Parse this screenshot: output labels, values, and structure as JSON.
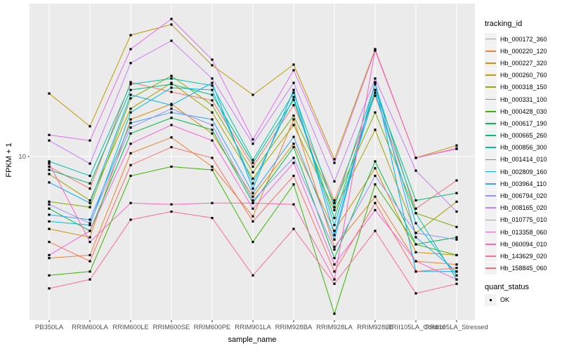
{
  "chart_data": {
    "type": "line",
    "title": "",
    "xlabel": "sample_name",
    "ylabel": "FPKM + 1",
    "y_scale": "log10",
    "ylim": [
      0.9,
      110
    ],
    "grid": "on",
    "legend_position": "right",
    "legend_title": "tracking_id",
    "y_ticks": [
      {
        "value": 10,
        "label": "10"
      }
    ],
    "categories": [
      "PB350LA",
      "RRIM600LA",
      "RRIM600LE",
      "RRIM600SE",
      "RRIM600PE",
      "RRIM901LA",
      "RRIM928BA",
      "RRIM928LA",
      "RRIM928LE",
      "RRII105LA_Control",
      "RRII105LA_Stressed"
    ],
    "series": [
      {
        "name": "Hb_000172_360",
        "color": "#F8766D",
        "values": [
          8.6,
          6.2,
          30.3,
          26.2,
          23.1,
          8.6,
          21.5,
          5.2,
          24.8,
          4.6,
          7.0
        ]
      },
      {
        "name": "Hb_000220_120",
        "color": "#EA8331",
        "values": [
          2.2,
          2.3,
          10.5,
          13.3,
          8.6,
          4.1,
          17.4,
          2.6,
          5.5,
          2.1,
          2.0
        ]
      },
      {
        "name": "Hb_000227_320",
        "color": "#D89000",
        "values": [
          3.4,
          3.0,
          17.4,
          21.9,
          14.1,
          5.5,
          12.1,
          3.3,
          8.4,
          2.4,
          2.3
        ]
      },
      {
        "name": "Hb_000260_760",
        "color": "#C09B00",
        "values": [
          25.6,
          15.7,
          61.1,
          71.6,
          39.0,
          25.1,
          39.4,
          9.6,
          49.6,
          9.8,
          11.8
        ]
      },
      {
        "name": "Hb_000318_150",
        "color": "#A3A500",
        "values": [
          7.7,
          5.2,
          20.4,
          30.0,
          19.3,
          7.2,
          16.0,
          4.5,
          14.9,
          3.2,
          5.1
        ]
      },
      {
        "name": "Hb_000331_100",
        "color": "#7CAE00",
        "values": [
          5.1,
          4.7,
          23.8,
          33.3,
          21.5,
          7.9,
          18.4,
          5.0,
          19.3,
          4.3,
          3.5
        ]
      },
      {
        "name": "Hb_000428_030",
        "color": "#39B600",
        "values": [
          1.7,
          1.8,
          7.5,
          8.6,
          8.2,
          2.8,
          6.6,
          0.96,
          6.6,
          2.7,
          2.3
        ]
      },
      {
        "name": "Hb_000617_190",
        "color": "#00BB4E",
        "values": [
          4.6,
          3.3,
          14.1,
          17.8,
          14.9,
          5.0,
          11.5,
          2.2,
          9.3,
          2.7,
          3.0
        ]
      },
      {
        "name": "Hb_000665_260",
        "color": "#00BF7D",
        "values": [
          8.2,
          6.7,
          27.0,
          29.4,
          25.1,
          9.1,
          23.3,
          4.0,
          27.0,
          5.2,
          5.8
        ]
      },
      {
        "name": "Hb_000856_300",
        "color": "#00C0AF",
        "values": [
          9.3,
          7.5,
          29.4,
          32.0,
          28.8,
          9.5,
          25.9,
          4.7,
          29.4,
          4.3,
          1.6
        ]
      },
      {
        "name": "Hb_001414_010",
        "color": "#00BCD8",
        "values": [
          3.8,
          3.6,
          19.3,
          27.9,
          27.0,
          6.7,
          24.3,
          3.6,
          25.9,
          3.7,
          1.7
        ]
      },
      {
        "name": "Hb_002809_160",
        "color": "#00B0F6",
        "values": [
          6.8,
          5.0,
          25.1,
          21.5,
          30.0,
          6.2,
          27.0,
          3.1,
          30.0,
          1.8,
          1.8
        ]
      },
      {
        "name": "Hb_003964_110",
        "color": "#35A2FF",
        "values": [
          4.2,
          3.9,
          16.5,
          19.3,
          17.4,
          5.8,
          13.4,
          2.9,
          30.3,
          3.0,
          1.8
        ]
      },
      {
        "name": "Hb_006794_020",
        "color": "#9590FF",
        "values": [
          4.9,
          3.7,
          15.4,
          20.4,
          16.0,
          5.2,
          9.8,
          2.5,
          7.5,
          3.2,
          2.9
        ]
      },
      {
        "name": "Hb_008165_020",
        "color": "#C77CFF",
        "values": [
          12.7,
          9.0,
          40.3,
          56.2,
          32.0,
          12.1,
          30.0,
          6.9,
          32.0,
          8.1,
          4.4
        ]
      },
      {
        "name": "Hb_010775_010",
        "color": "#E76BF3",
        "values": [
          13.8,
          12.7,
          49.6,
          77.8,
          42.4,
          12.9,
          36.2,
          9.1,
          48.5,
          9.8,
          11.2
        ]
      },
      {
        "name": "Hb_013358_060",
        "color": "#FA62DB",
        "values": [
          2.3,
          3.3,
          12.1,
          16.0,
          12.7,
          4.6,
          9.1,
          2.0,
          4.5,
          2.1,
          1.6
        ]
      },
      {
        "name": "Hb_060094_010",
        "color": "#FF62BC",
        "values": [
          9.0,
          2.8,
          5.0,
          4.9,
          5.0,
          5.0,
          4.9,
          1.6,
          49.1,
          9.8,
          11.3
        ]
      },
      {
        "name": "Hb_143629_020",
        "color": "#FF6A98",
        "values": [
          1.4,
          1.6,
          3.9,
          4.4,
          4.0,
          1.7,
          3.4,
          1.5,
          3.3,
          1.3,
          1.5
        ]
      },
      {
        "name": "Hb_158845_060",
        "color": "#FF6C67",
        "values": [
          2.8,
          2.1,
          8.8,
          11.5,
          9.8,
          3.8,
          7.5,
          1.8,
          5.0,
          1.8,
          1.9
        ]
      }
    ],
    "quant_legend": {
      "title": "quant_status",
      "items": [
        {
          "label": "OK",
          "shape": "square",
          "color": "#000000"
        }
      ]
    },
    "colors": {
      "panel_bg": "#EBEBEB",
      "grid": "#FFFFFF",
      "point": "#000000",
      "tick_text": "#4D4D4D",
      "tick_mark": "#333333",
      "legend_key_bg": "#F2F2F2"
    }
  }
}
